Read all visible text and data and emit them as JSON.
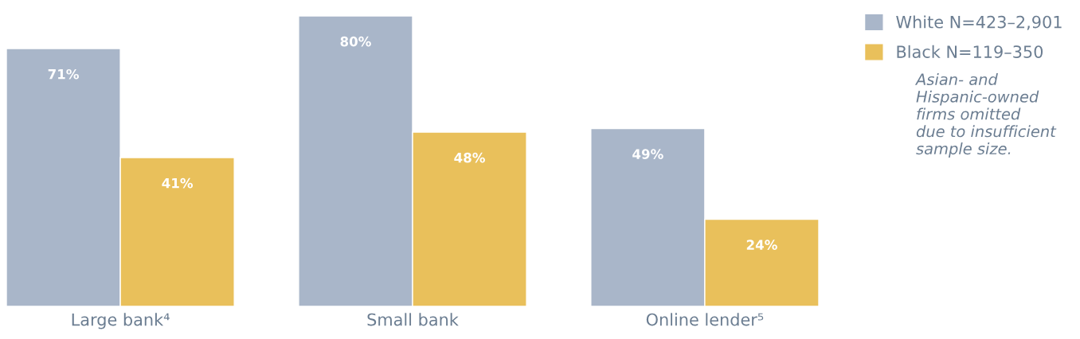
{
  "chart_data": {
    "type": "bar",
    "categories": [
      "Large bank⁴",
      "Small bank",
      "Online lender⁵"
    ],
    "series": [
      {
        "name": "White N=423–2,901",
        "color": "#a9b6c9",
        "values": [
          71,
          80,
          49
        ],
        "value_labels": [
          "71%",
          "80%",
          "49%"
        ]
      },
      {
        "name": "Black N=119–350",
        "color": "#e9c05b",
        "values": [
          41,
          48,
          24
        ],
        "value_labels": [
          "41%",
          "48%",
          "24%"
        ]
      }
    ],
    "ylim": [
      0,
      80
    ],
    "tick_labels": "x",
    "grid": false,
    "legend": "top right",
    "annotations": [
      "Asian- and\nHispanic-owned\nfirms omitted\ndue to insufficient\nsample size."
    ]
  }
}
